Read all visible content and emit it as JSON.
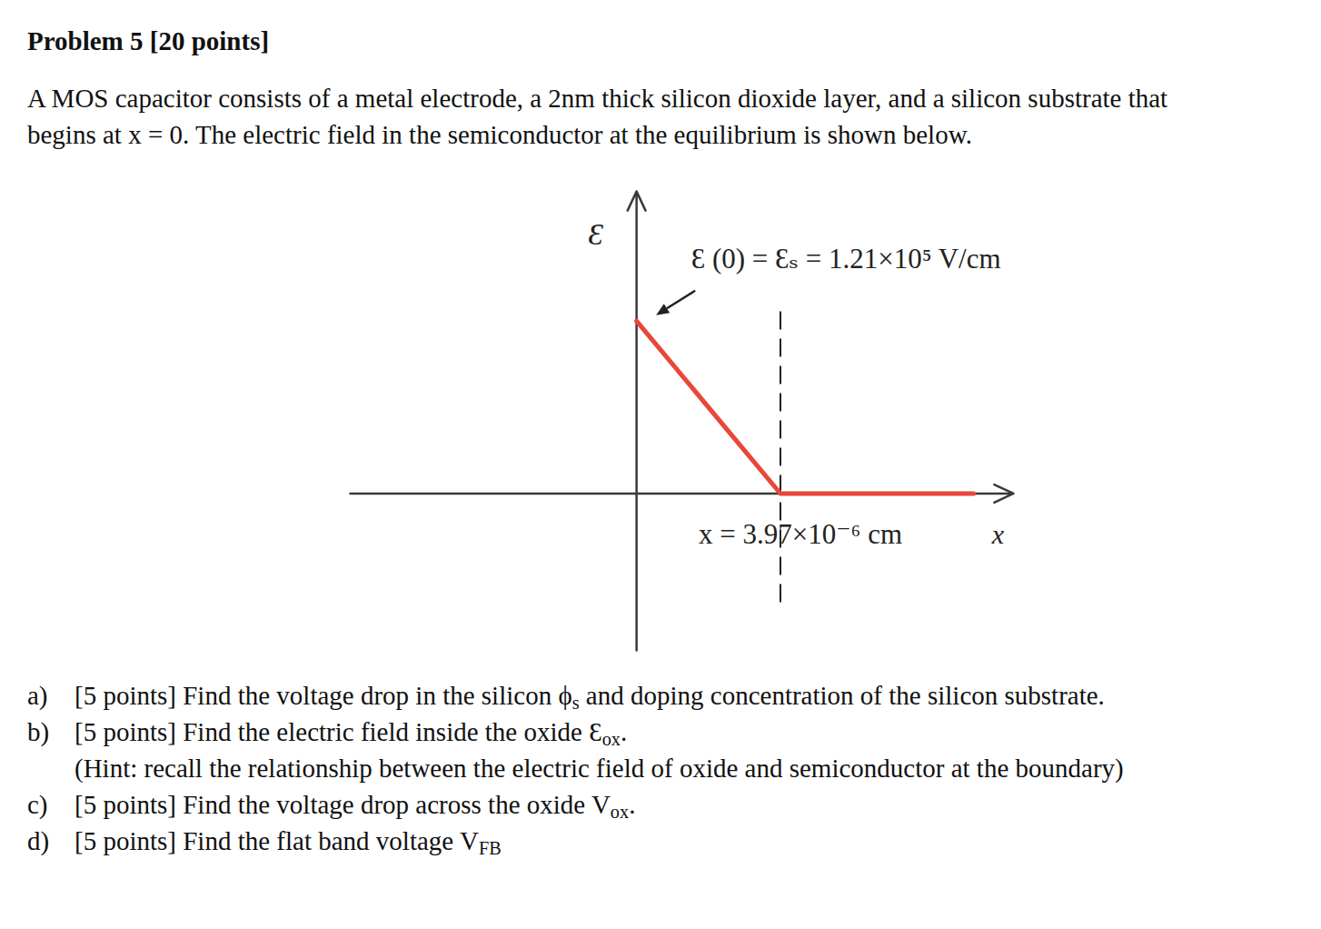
{
  "document": {
    "title": "Problem 5 [20 points]",
    "paragraph": [
      "A MOS capacitor consists of a metal electrode, a 2nm thick silicon dioxide layer, and a silicon substrate that",
      "begins at x = 0. The electric field in the semiconductor at the equilibrium is shown below."
    ],
    "questions": [
      {
        "label": "a)",
        "points": "[5 points]",
        "parts": [
          "Find the voltage drop in the silicon ϕ",
          {
            "sub": "s"
          },
          " and doping concentration of the silicon substrate."
        ]
      },
      {
        "label": "b)",
        "points": "[5 points]",
        "parts": [
          "Find the electric field inside the oxide Ɛ",
          {
            "sub": "ox"
          },
          "."
        ],
        "hint": "(Hint: recall the relationship between the electric field of oxide and semiconductor at the boundary)"
      },
      {
        "label": "c)",
        "points": "[5 points]",
        "parts": [
          "Find the voltage drop across the oxide V",
          {
            "sub": "ox"
          },
          "."
        ]
      },
      {
        "label": "d)",
        "points": "[5 points]",
        "parts": [
          "Find the flat band voltage V",
          {
            "sub": "FB"
          }
        ]
      }
    ]
  },
  "chart_data": {
    "type": "line",
    "x": [
      0,
      3.97e-06,
      9.3e-06
    ],
    "values": [
      121000,
      0,
      0
    ],
    "color": "#e8473a",
    "xlim": [
      -7.9e-06,
      1.04e-05
    ],
    "ylim": [
      -110000,
      212000
    ],
    "x_label": "x",
    "y_label": "Ɛ",
    "tick_labels": false,
    "annotations": [
      {
        "text": "Ɛ (0) = Ɛₛ = 1.21×10⁵ V/cm",
        "x": 0,
        "y": 121000
      },
      {
        "text": "x = 3.97×10⁻⁶ cm",
        "x": 3.97e-06,
        "y": 0
      }
    ]
  }
}
